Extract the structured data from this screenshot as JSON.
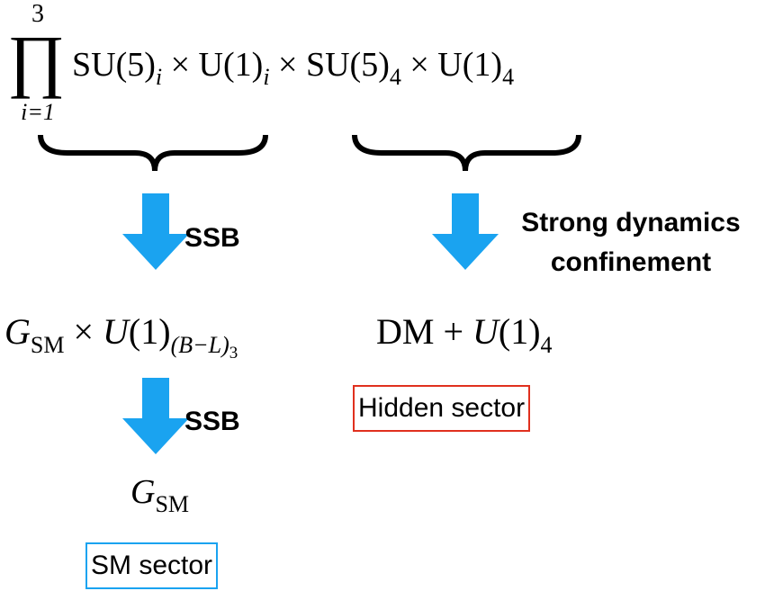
{
  "top_formula": {
    "product": "∏",
    "upper": "3",
    "lower": "i=1",
    "terms": [
      {
        "text": "SU(5)",
        "sub": "i"
      },
      {
        "text": "× U(1)",
        "sub": "i"
      },
      {
        "text": "× SU(5)",
        "sub": "4"
      },
      {
        "text": "× U(1)",
        "sub": "4"
      }
    ]
  },
  "left_formula": {
    "g": "G",
    "g_sub": "SM",
    "times": "×",
    "u": "U",
    "rest": "(1)",
    "sub": "(B−L)",
    "subsub": "3"
  },
  "right_formula": {
    "dm": "DM +",
    "u": "U",
    "rest": "(1)",
    "sub": "4"
  },
  "bottom_formula": {
    "g": "G",
    "sub": "SM"
  },
  "labels": {
    "ssb_upper": "SSB",
    "ssb_lower": "SSB",
    "strong": [
      "Strong dynamics",
      "confinement"
    ],
    "hidden": "Hidden sector",
    "sm": "SM sector"
  }
}
